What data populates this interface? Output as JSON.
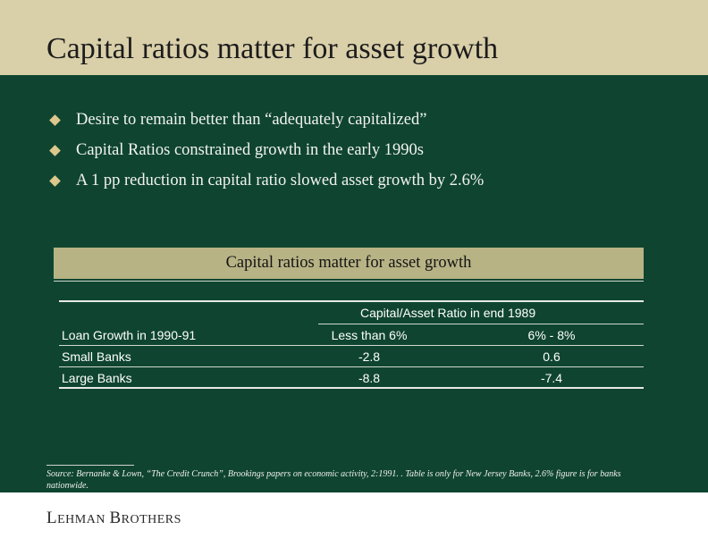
{
  "slide": {
    "title": "Capital ratios matter for asset growth",
    "bullets": [
      "Desire to remain better than “adequately capitalized”",
      "Capital Ratios constrained growth in the early 1990s",
      "A 1 pp reduction in capital ratio slowed asset growth by 2.6%"
    ]
  },
  "table": {
    "caption": "Capital ratios matter for asset growth",
    "group_header": "Capital/Asset Ratio in end 1989",
    "columns": [
      "Loan Growth in 1990-91",
      "Less than 6%",
      "6% - 8%"
    ],
    "rows": [
      [
        "Small Banks",
        "-2.8",
        "0.6"
      ],
      [
        "Large Banks",
        "-8.8",
        "-7.4"
      ]
    ]
  },
  "source": "Source: Bernanke & Lown, “The Credit Crunch”, Brookings papers on economic activity, 2:1991. . Table is only for New Jersey Banks, 2.6% figure is for banks nationwide.",
  "footer": {
    "logo_first_initial": "L",
    "logo_first_rest": "EHMAN",
    "logo_second_initial": "B",
    "logo_second_rest": "ROTHERS"
  },
  "colors": {
    "header_background": "#d9cfa9",
    "panel_background": "#0f4530",
    "band_background": "#b7b385",
    "bullet_marker": "#dcc88c"
  }
}
